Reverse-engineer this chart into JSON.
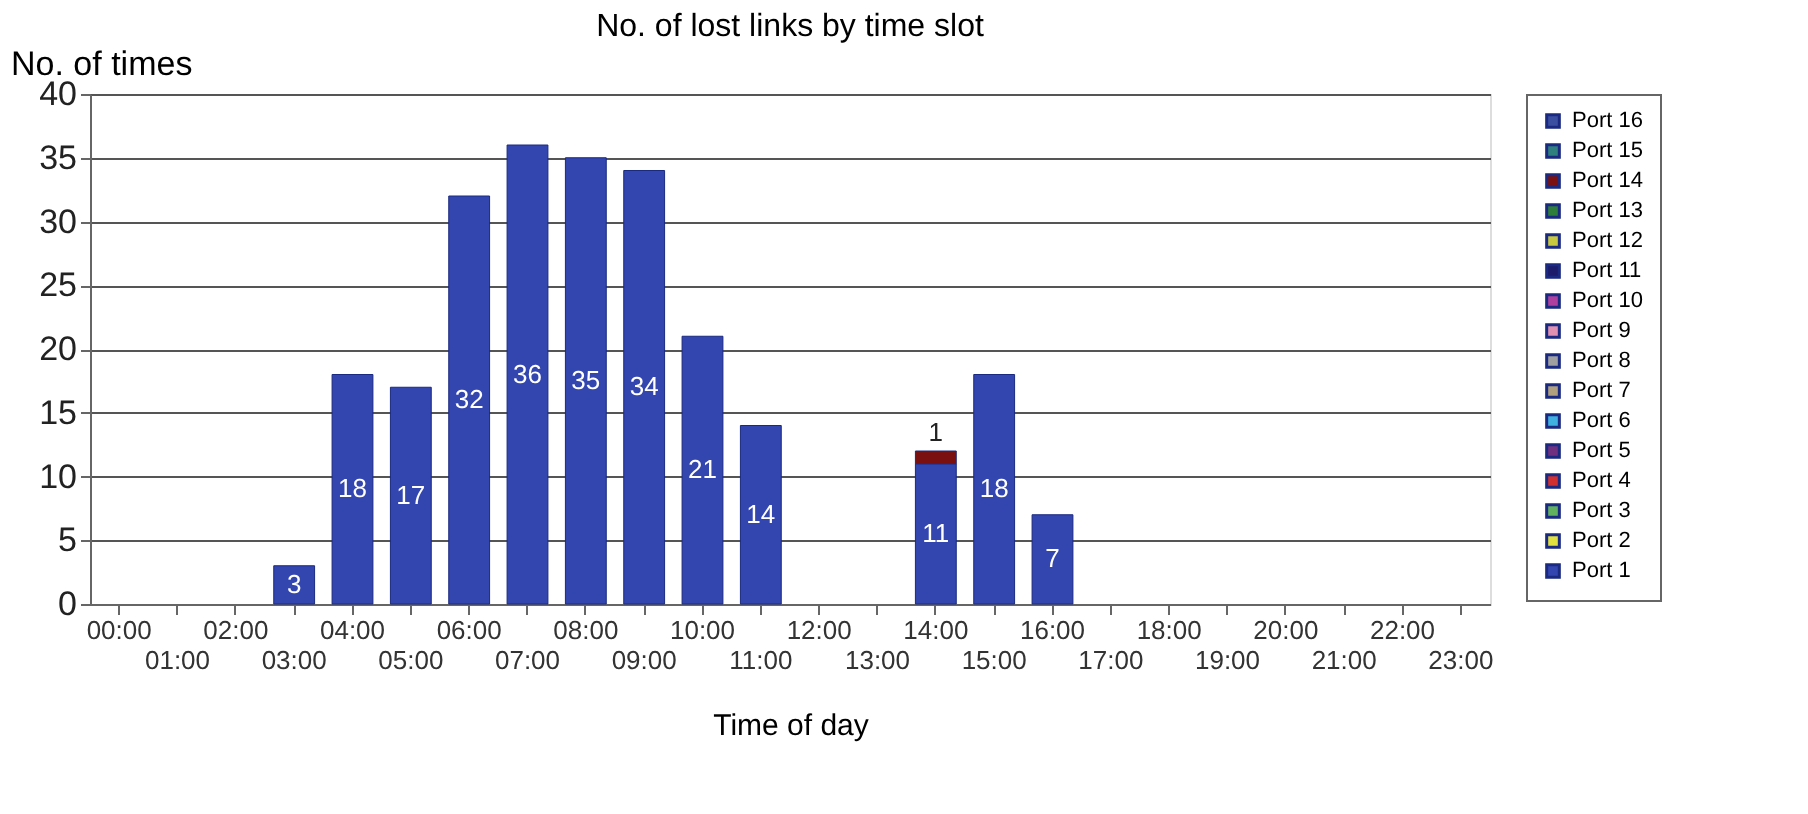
{
  "chart_data": {
    "type": "bar",
    "title": "No. of lost links by time slot",
    "xlabel": "Time of day",
    "ylabel": "No. of times",
    "categories": [
      "00:00",
      "01:00",
      "02:00",
      "03:00",
      "04:00",
      "05:00",
      "06:00",
      "07:00",
      "08:00",
      "09:00",
      "10:00",
      "11:00",
      "12:00",
      "13:00",
      "14:00",
      "15:00",
      "16:00",
      "17:00",
      "18:00",
      "19:00",
      "20:00",
      "21:00",
      "22:00",
      "23:00"
    ],
    "stacked": true,
    "data_labels": true,
    "grid": "y",
    "legend": "right",
    "ylim": [
      0,
      40
    ],
    "yticks": [
      0,
      5,
      10,
      15,
      20,
      25,
      30,
      35,
      40
    ],
    "series": [
      {
        "name": "Port 1",
        "color": "#3346b0",
        "values": [
          null,
          null,
          null,
          3,
          18,
          17,
          32,
          36,
          35,
          34,
          21,
          14,
          null,
          null,
          11,
          18,
          7,
          null,
          null,
          null,
          null,
          null,
          null,
          null
        ]
      },
      {
        "name": "Port 2",
        "color": "#e0e040",
        "values": [
          null,
          null,
          null,
          null,
          null,
          null,
          null,
          null,
          null,
          null,
          null,
          null,
          null,
          null,
          null,
          null,
          null,
          null,
          null,
          null,
          null,
          null,
          null,
          null
        ]
      },
      {
        "name": "Port 3",
        "color": "#60b060",
        "values": [
          null,
          null,
          null,
          null,
          null,
          null,
          null,
          null,
          null,
          null,
          null,
          null,
          null,
          null,
          null,
          null,
          null,
          null,
          null,
          null,
          null,
          null,
          null,
          null
        ]
      },
      {
        "name": "Port 4",
        "color": "#d03030",
        "values": [
          null,
          null,
          null,
          null,
          null,
          null,
          null,
          null,
          null,
          null,
          null,
          null,
          null,
          null,
          null,
          null,
          null,
          null,
          null,
          null,
          null,
          null,
          null,
          null
        ]
      },
      {
        "name": "Port 5",
        "color": "#703080",
        "values": [
          null,
          null,
          null,
          null,
          null,
          null,
          null,
          null,
          null,
          null,
          null,
          null,
          null,
          null,
          null,
          null,
          null,
          null,
          null,
          null,
          null,
          null,
          null,
          null
        ]
      },
      {
        "name": "Port 6",
        "color": "#40b0e0",
        "values": [
          null,
          null,
          null,
          null,
          null,
          null,
          null,
          null,
          null,
          null,
          null,
          null,
          null,
          null,
          null,
          null,
          null,
          null,
          null,
          null,
          null,
          null,
          null,
          null
        ]
      },
      {
        "name": "Port 7",
        "color": "#b0a080",
        "values": [
          null,
          null,
          null,
          null,
          null,
          null,
          null,
          null,
          null,
          null,
          null,
          null,
          null,
          null,
          null,
          null,
          null,
          null,
          null,
          null,
          null,
          null,
          null,
          null
        ]
      },
      {
        "name": "Port 8",
        "color": "#a0a0a0",
        "values": [
          null,
          null,
          null,
          null,
          null,
          null,
          null,
          null,
          null,
          null,
          null,
          null,
          null,
          null,
          null,
          null,
          null,
          null,
          null,
          null,
          null,
          null,
          null,
          null
        ]
      },
      {
        "name": "Port 9",
        "color": "#e090b0",
        "values": [
          null,
          null,
          null,
          null,
          null,
          null,
          null,
          null,
          null,
          null,
          null,
          null,
          null,
          null,
          null,
          null,
          null,
          null,
          null,
          null,
          null,
          null,
          null,
          null
        ]
      },
      {
        "name": "Port 10",
        "color": "#b040a0",
        "values": [
          null,
          null,
          null,
          null,
          null,
          null,
          null,
          null,
          null,
          null,
          null,
          null,
          null,
          null,
          null,
          null,
          null,
          null,
          null,
          null,
          null,
          null,
          null,
          null
        ]
      },
      {
        "name": "Port 11",
        "color": "#1c1c6a",
        "values": [
          null,
          null,
          null,
          null,
          null,
          null,
          null,
          null,
          null,
          null,
          null,
          null,
          null,
          null,
          null,
          null,
          null,
          null,
          null,
          null,
          null,
          null,
          null,
          null
        ]
      },
      {
        "name": "Port 12",
        "color": "#c8c840",
        "values": [
          null,
          null,
          null,
          null,
          null,
          null,
          null,
          null,
          null,
          null,
          null,
          null,
          null,
          null,
          null,
          null,
          null,
          null,
          null,
          null,
          null,
          null,
          null,
          null
        ]
      },
      {
        "name": "Port 13",
        "color": "#2e7d3a",
        "values": [
          null,
          null,
          null,
          null,
          null,
          null,
          null,
          null,
          null,
          null,
          null,
          null,
          null,
          null,
          null,
          null,
          null,
          null,
          null,
          null,
          null,
          null,
          null,
          null
        ]
      },
      {
        "name": "Port 14",
        "color": "#7a1010",
        "values": [
          null,
          null,
          null,
          null,
          null,
          null,
          null,
          null,
          null,
          null,
          null,
          null,
          null,
          null,
          1,
          null,
          null,
          null,
          null,
          null,
          null,
          null,
          null,
          null
        ]
      },
      {
        "name": "Port 15",
        "color": "#2f7f7f",
        "values": [
          null,
          null,
          null,
          null,
          null,
          null,
          null,
          null,
          null,
          null,
          null,
          null,
          null,
          null,
          null,
          null,
          null,
          null,
          null,
          null,
          null,
          null,
          null,
          null
        ]
      },
      {
        "name": "Port 16",
        "color": "#3b4fa0",
        "values": [
          null,
          null,
          null,
          null,
          null,
          null,
          null,
          null,
          null,
          null,
          null,
          null,
          null,
          null,
          null,
          null,
          null,
          null,
          null,
          null,
          null,
          null,
          null,
          null
        ]
      }
    ]
  }
}
